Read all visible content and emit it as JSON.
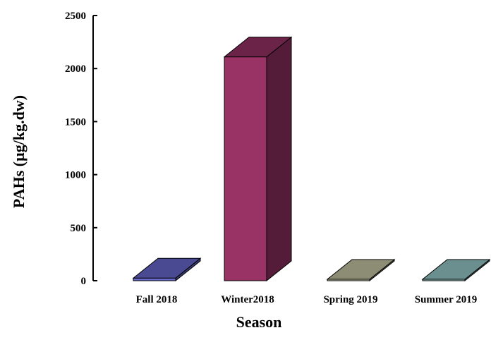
{
  "chart_data": {
    "type": "bar",
    "style": "3d",
    "title": "",
    "xlabel": "Season",
    "ylabel": "PAHs (µg/kg.dw)",
    "ylim": [
      0,
      2500
    ],
    "yticks": [
      0,
      500,
      1000,
      1500,
      2000,
      2500
    ],
    "grid": false,
    "categories": [
      "Fall 2018",
      "Winter2018",
      "Spring 2019",
      "Summer 2019"
    ],
    "values": [
      25,
      2110,
      3,
      5
    ],
    "colors": {
      "Fall 2018": "#6a6ad0",
      "Winter2018": "#993366",
      "Spring 2019": "#c9c9a8",
      "Summer 2019": "#99cccc"
    }
  }
}
